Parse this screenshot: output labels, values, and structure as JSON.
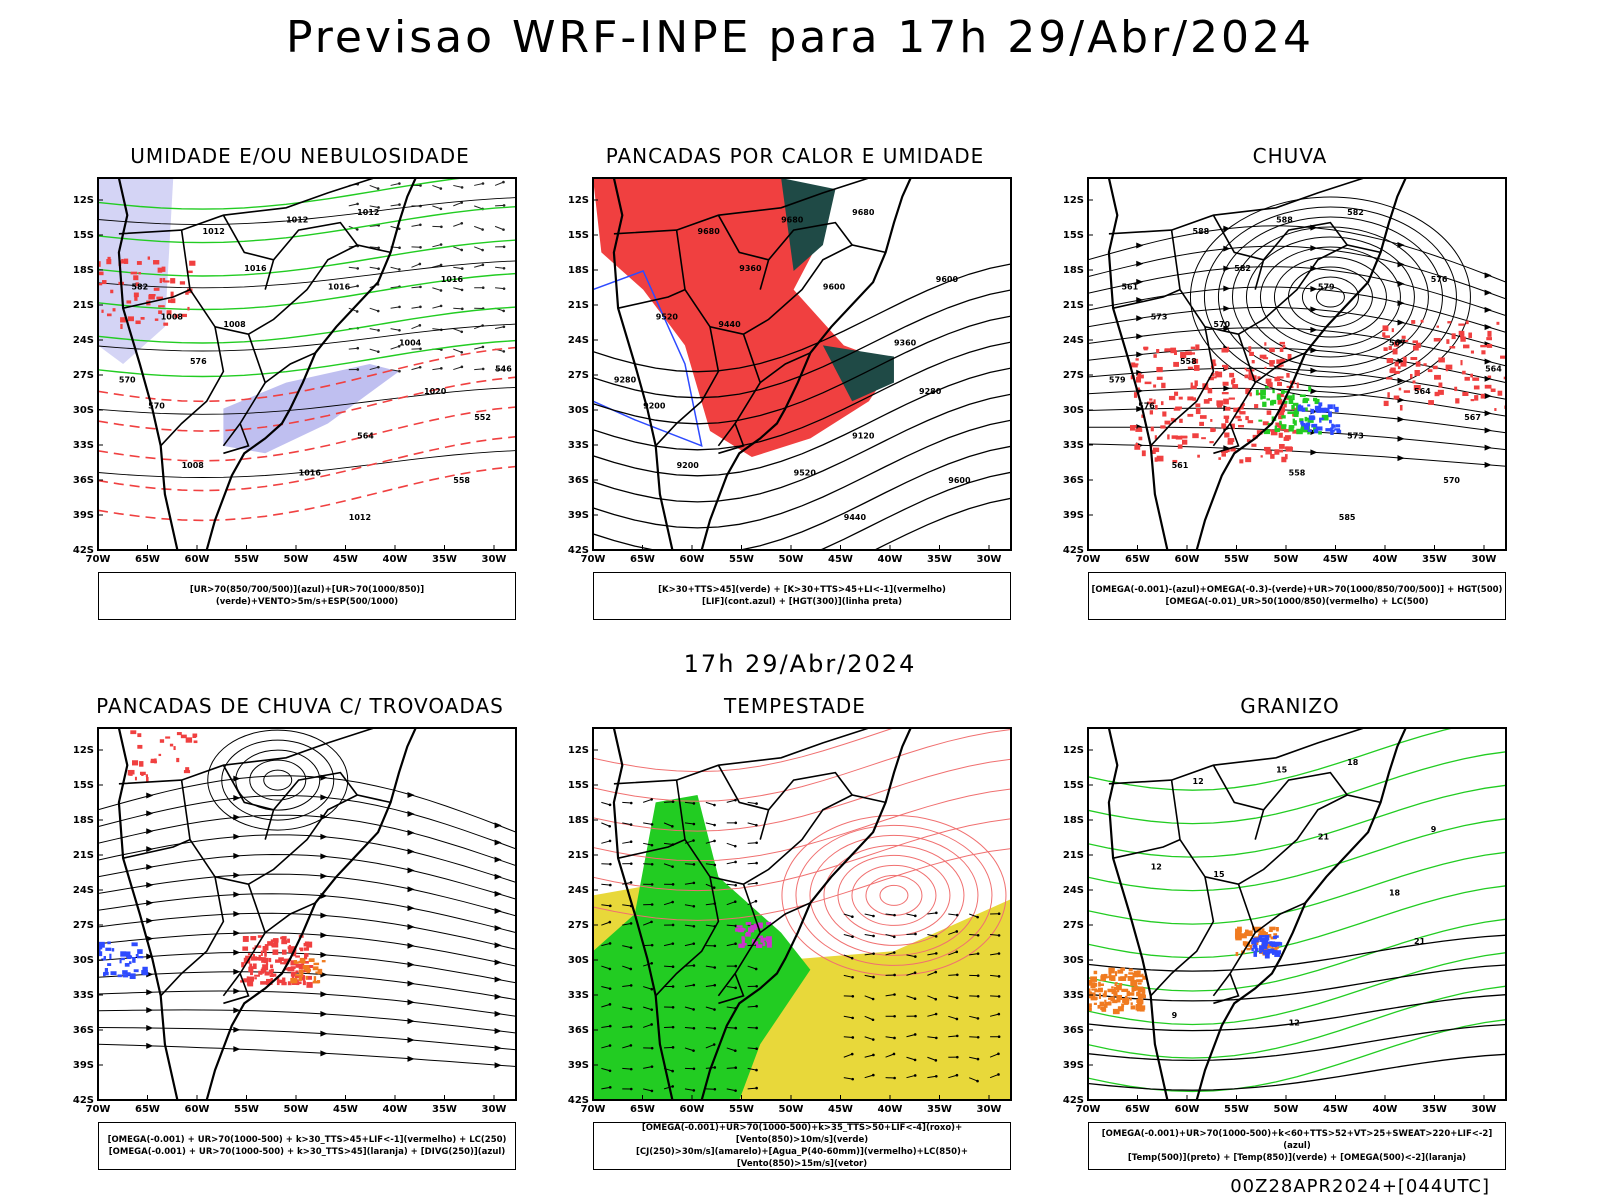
{
  "title": "Previsao WRF-INPE  para 17h 29/Abr/2024",
  "mid_title": "17h 29/Abr/2024",
  "footer": "00Z28APR2024+[044UTC]",
  "lat_labels": [
    "12S",
    "15S",
    "18S",
    "21S",
    "24S",
    "27S",
    "30S",
    "33S",
    "36S",
    "39S",
    "42S"
  ],
  "lon_labels": [
    "70W",
    "65W",
    "60W",
    "55W",
    "50W",
    "45W",
    "40W",
    "35W",
    "30W"
  ],
  "panels": [
    {
      "title": "UMIDADE E/OU NEBULOSIDADE",
      "legend": [
        "[UR>70(850/700/500)](azul)+[UR>70(1000/850)](verde)+VENTO>5m/s+ESP(500/1000)"
      ],
      "contour_labels": [
        "1012",
        "1012",
        "1012",
        "1016",
        "1016",
        "1008",
        "1008",
        "1004",
        "1020",
        "1008",
        "1016",
        "1012",
        "1016",
        "570",
        "570",
        "564",
        "558",
        "552",
        "546",
        "582",
        "576"
      ]
    },
    {
      "title": "PANCADAS POR CALOR E UMIDADE",
      "legend": [
        "[K>30+TTS>45](verde) + [K>30+TTS>45+LI<-1](vermelho)",
        "[LIF](cont.azul) + [HGT(300)](linha preta)"
      ],
      "contour_labels": [
        "9680",
        "9680",
        "9680",
        "9600",
        "9600",
        "9520",
        "9440",
        "9360",
        "9280",
        "9200",
        "9520",
        "9440",
        "9360",
        "9280",
        "9200",
        "9120",
        "9600"
      ]
    },
    {
      "title": "CHUVA",
      "legend": [
        "[OMEGA(-0.001)-(azul)+OMEGA(-0.3)-(verde)+UR>70(1000/850/700/500)] + HGT(500)",
        "[OMEGA(-0.01)_UR>50(1000/850)(vermelho) + LC(500)"
      ],
      "contour_labels": [
        "588",
        "588",
        "582",
        "579",
        "576",
        "573",
        "570",
        "567",
        "564",
        "561",
        "558",
        "585",
        "582",
        "579",
        "576",
        "573",
        "570",
        "567",
        "564",
        "561",
        "558"
      ]
    },
    {
      "title": "PANCADAS DE CHUVA C/ TROVOADAS",
      "legend": [
        "[OMEGA(-0.001) + UR>70(1000-500) + k>30_TTS>45+LIF<-1](vermelho) + LC(250)",
        "[OMEGA(-0.001) + UR>70(1000-500) + k>30_TTS>45](laranja) + [DIVG(250)](azul)"
      ],
      "contour_labels": []
    },
    {
      "title": "TEMPESTADE",
      "legend": [
        "[OMEGA(-0.001)+UR>70(1000-500)+k>35_TTS>50+LIF<-4](roxo)+[Vento(850)>10m/s](verde)",
        "[CJ(250)>30m/s](amarelo)+[Agua_P(40-60mm)](vermelho)+LC(850)+[Vento(850)>15m/s](vetor)"
      ],
      "contour_labels": []
    },
    {
      "title": "GRANIZO",
      "legend": [
        "[OMEGA(-0.001)+UR>70(1000-500)+k<60+TTS>52+VT>25+SWEAT>220+LIF<-2](azul)",
        "[Temp(500)](preto) + [Temp(850)](verde) + [OMEGA(500)<-2](laranja)"
      ],
      "contour_labels": [
        "12",
        "15",
        "18",
        "21",
        "9",
        "12",
        "15",
        "18",
        "21",
        "9",
        "12"
      ]
    }
  ],
  "colors": {
    "blue": "#2e4bff",
    "green": "#22cc22",
    "red": "#f04040",
    "darkgreen": "#1f4a46",
    "lavender": "#b8b8ee",
    "yellow": "#e8d83a",
    "orange": "#f07b20",
    "purple": "#cc33cc",
    "salmon": "#f07070"
  }
}
